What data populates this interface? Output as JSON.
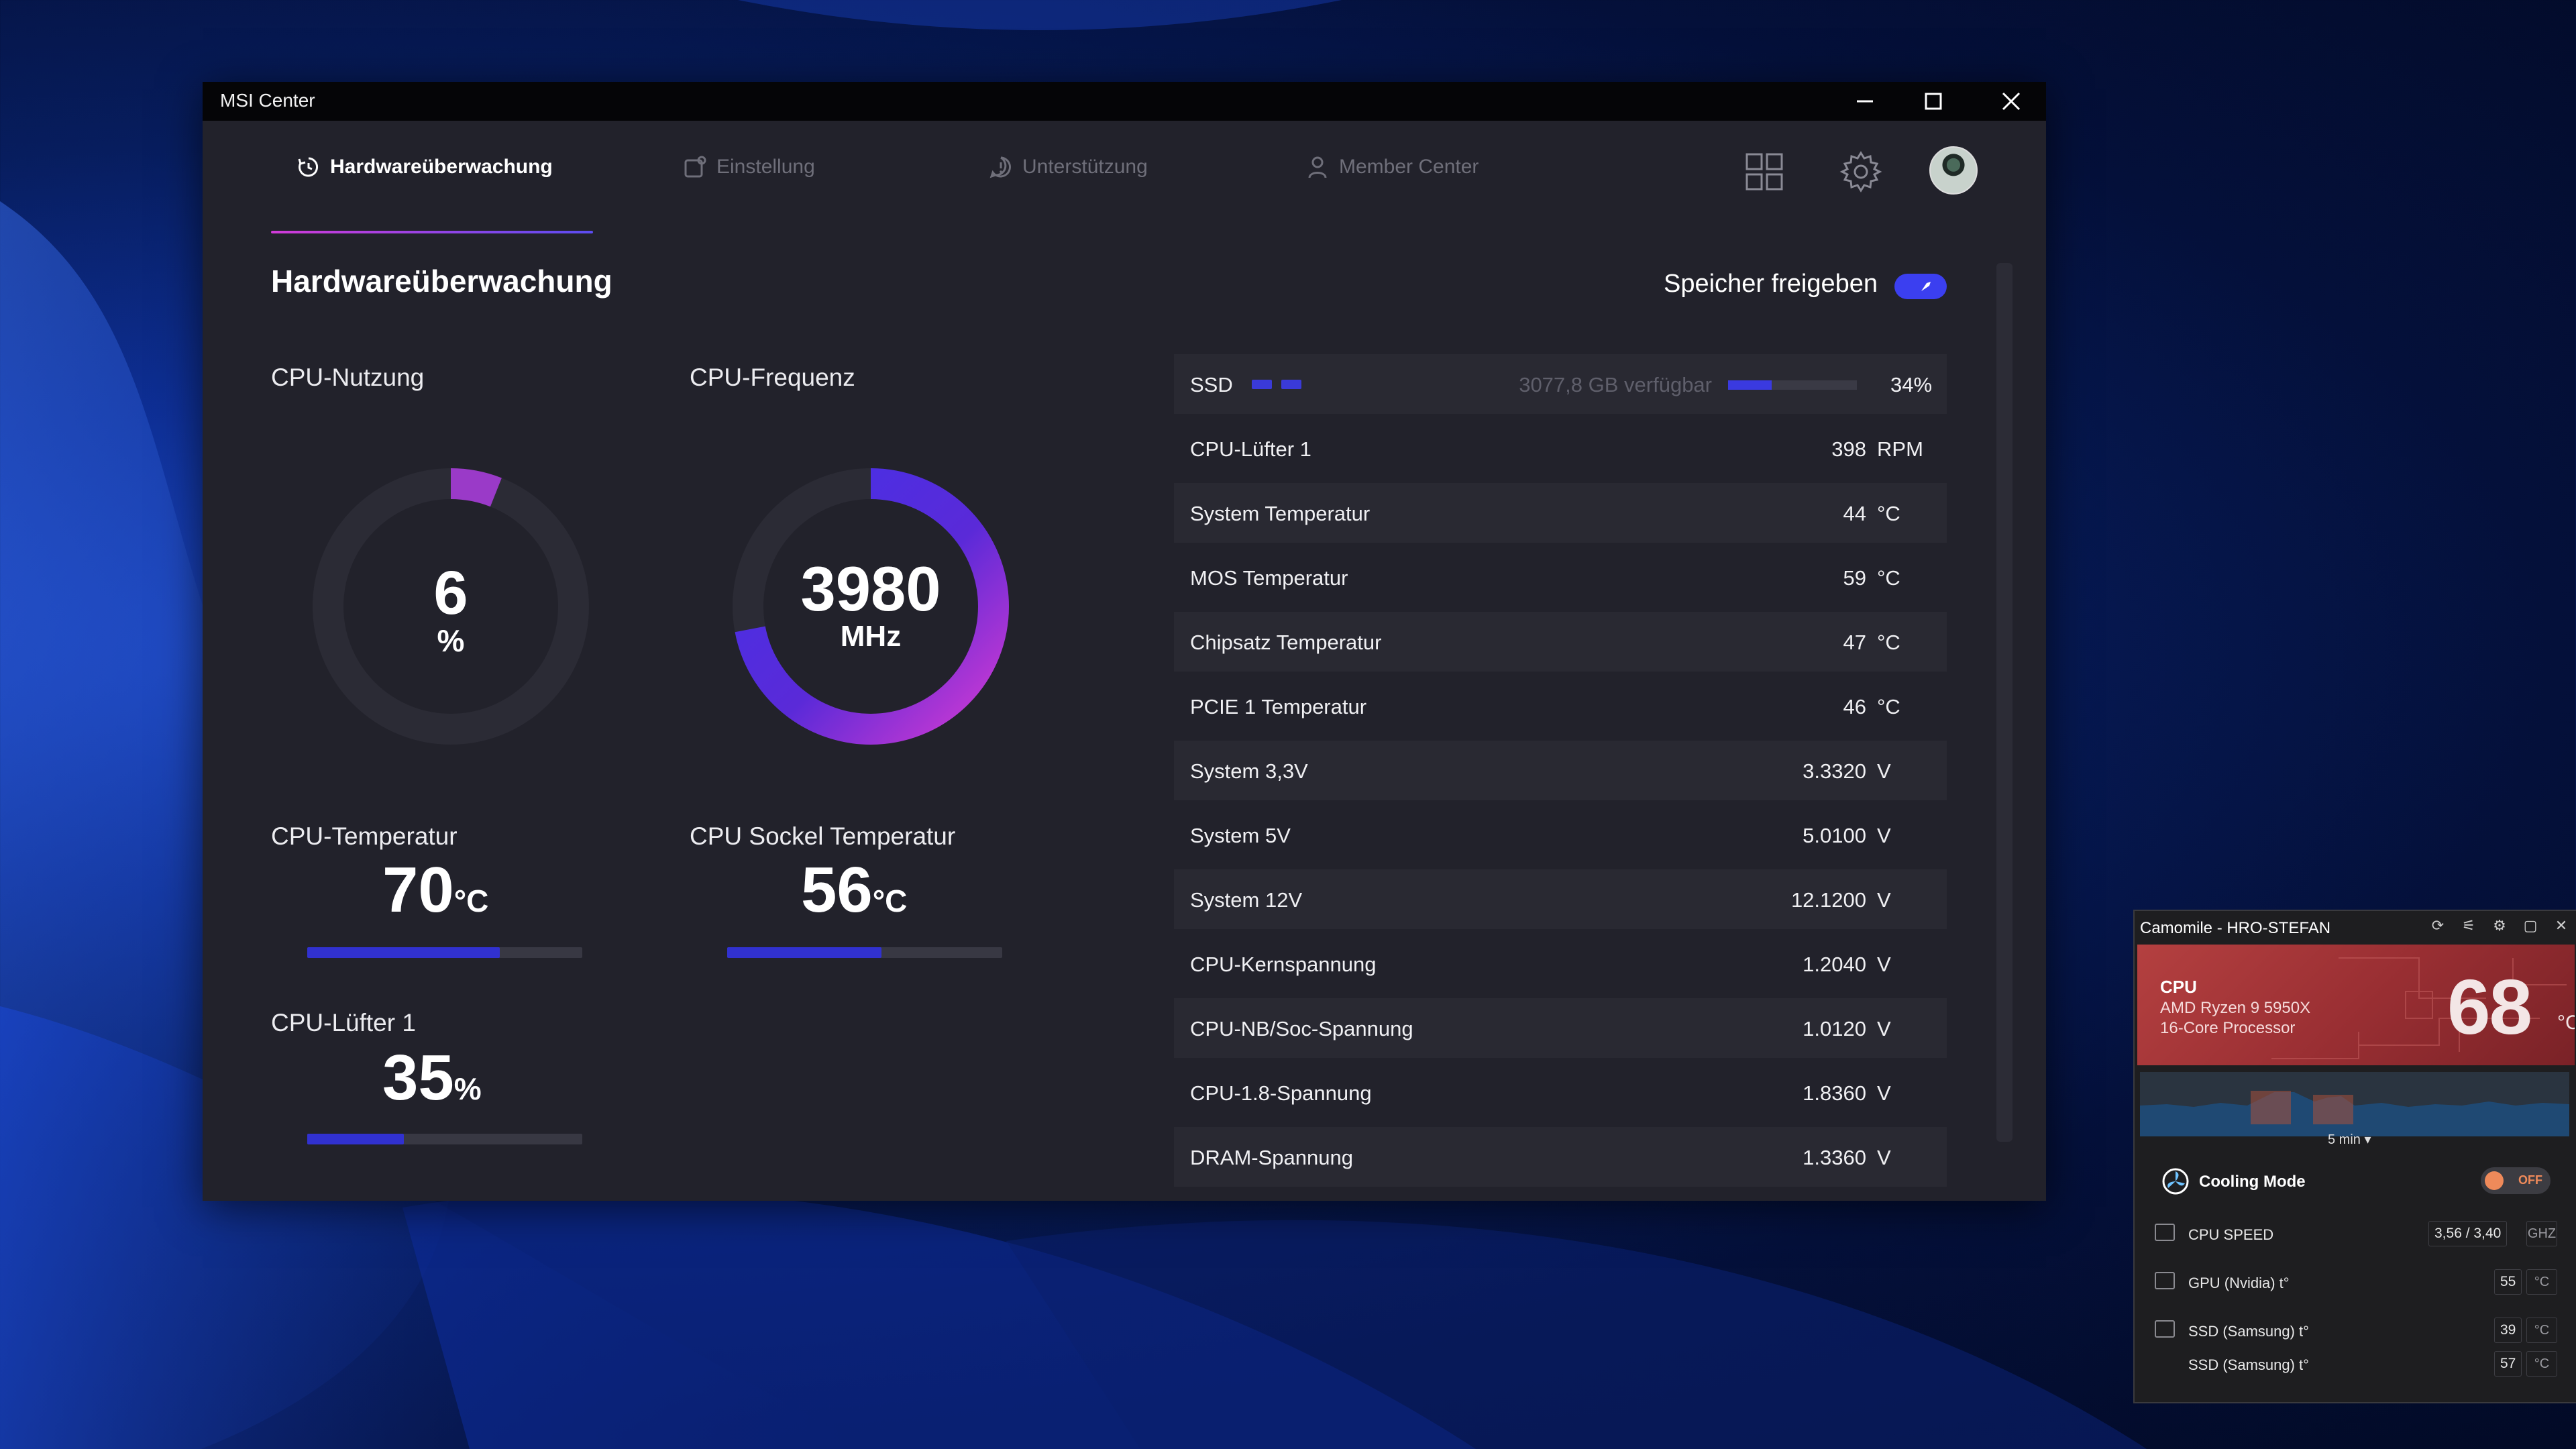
{
  "window": {
    "title": "MSI Center"
  },
  "tabs": [
    {
      "label": "Hardwareüberwachung",
      "active": true
    },
    {
      "label": "Einstellung",
      "active": false
    },
    {
      "label": "Unterstützung",
      "active": false
    },
    {
      "label": "Member Center",
      "active": false
    }
  ],
  "page": {
    "title": "Hardwareüberwachung",
    "memory_label": "Speicher freigeben"
  },
  "gauges": {
    "cpu_usage": {
      "label": "CPU-Nutzung",
      "value": "6",
      "unit": "%",
      "fraction": 0.06
    },
    "cpu_freq": {
      "label": "CPU-Frequenz",
      "value": "3980",
      "unit": "MHz",
      "fraction": 0.72
    }
  },
  "temps": {
    "cpu_temp": {
      "label": "CPU-Temperatur",
      "value": "70",
      "unit": "°C",
      "level": 0.7
    },
    "socket_temp": {
      "label": "CPU Sockel Temperatur",
      "value": "56",
      "unit": "°C",
      "level": 0.56
    },
    "cpu_fan": {
      "label": "CPU-Lüfter 1",
      "value": "35",
      "unit": "%",
      "level": 0.35
    }
  },
  "ssd": {
    "name": "SSD",
    "available": "3077,8 GB verfügbar",
    "percent": "34%",
    "fraction": 0.34
  },
  "sensors": [
    {
      "name": "CPU-Lüfter 1",
      "value": "398",
      "unit": "RPM"
    },
    {
      "name": "System Temperatur",
      "value": "44",
      "unit": "°C"
    },
    {
      "name": "MOS Temperatur",
      "value": "59",
      "unit": "°C"
    },
    {
      "name": "Chipsatz Temperatur",
      "value": "47",
      "unit": "°C"
    },
    {
      "name": "PCIE 1 Temperatur",
      "value": "46",
      "unit": "°C"
    },
    {
      "name": "System 3,3V",
      "value": "3.3320",
      "unit": "V"
    },
    {
      "name": "System 5V",
      "value": "5.0100",
      "unit": "V"
    },
    {
      "name": "System 12V",
      "value": "12.1200",
      "unit": "V"
    },
    {
      "name": "CPU-Kernspannung",
      "value": "1.2040",
      "unit": "V"
    },
    {
      "name": "CPU-NB/Soc-Spannung",
      "value": "1.0120",
      "unit": "V"
    },
    {
      "name": "CPU-1.8-Spannung",
      "value": "1.8360",
      "unit": "V"
    },
    {
      "name": "DRAM-Spannung",
      "value": "1.3360",
      "unit": "V"
    }
  ],
  "camomile": {
    "title": "Camomile - HRO-STEFAN",
    "cpu_label": "CPU",
    "cpu_model_1": "AMD Ryzen 9 5950X",
    "cpu_model_2": "16-Core Processor",
    "cpu_temp": "68",
    "cpu_temp_unit": "°C",
    "graph_range": "5 min",
    "cooling_mode": "Cooling Mode",
    "cooling_state": "OFF",
    "rows": [
      {
        "name": "CPU SPEED",
        "value": "3,56 / 3,40",
        "unit": "GHZ"
      },
      {
        "name": "GPU (Nvidia) t°",
        "value": "55",
        "unit": "°C"
      },
      {
        "name": "SSD (Samsung) t°",
        "value": "39",
        "unit": "°C"
      },
      {
        "name": "SSD (Samsung) t°",
        "value": "57",
        "unit": "°C"
      }
    ]
  },
  "colors": {
    "accent_blue": "#3131d0",
    "accent_pink": "#c53cc9",
    "window_bg": "#22222b",
    "camomile_red": "#9a2f33"
  }
}
